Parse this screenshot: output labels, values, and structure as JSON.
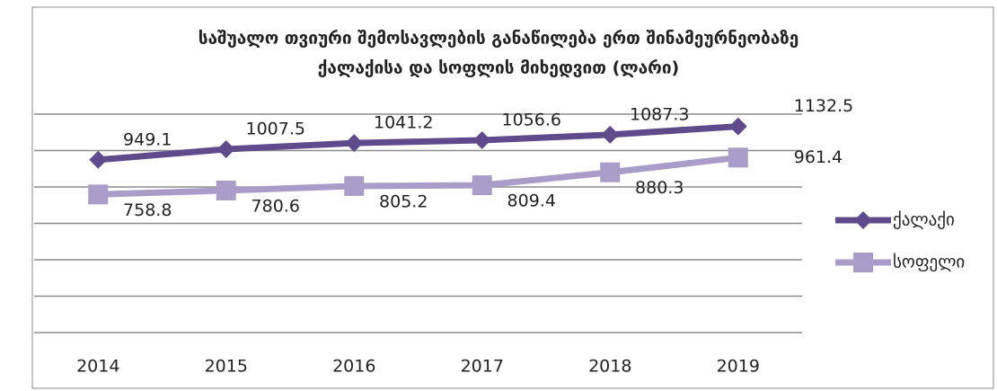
{
  "chart_data": {
    "type": "line",
    "title": [
      "საშუალო თვიური შემოსავლების განაწილება ერთ შინამეურნეობაზე",
      "ქალაქისა და სოფლის მიხედვით (ლარი)"
    ],
    "categories": [
      "2014",
      "2015",
      "2016",
      "2017",
      "2018",
      "2019"
    ],
    "series": [
      {
        "name": "ქალაქი",
        "color": "#5f4a8b",
        "marker": "diamond",
        "values": [
          949.1,
          1007.5,
          1041.2,
          1056.6,
          1087.3,
          1132.5
        ]
      },
      {
        "name": "სოფელი",
        "color": "#a99cc9",
        "marker": "square",
        "values": [
          758.8,
          780.6,
          805.2,
          809.4,
          880.3,
          961.4
        ]
      }
    ],
    "ylim": [
      0,
      1200
    ],
    "yticks": [
      0,
      200,
      400,
      600,
      800,
      1000,
      1200
    ],
    "grid": true,
    "legend": "right"
  }
}
